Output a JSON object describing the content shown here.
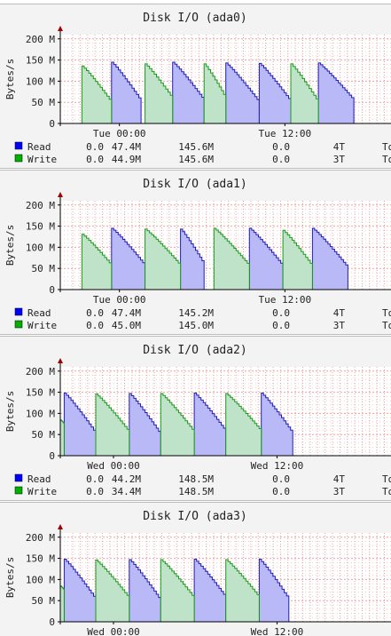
{
  "colors": {
    "read_fill": "#b9b9f7",
    "read_line": "#1e1eb4",
    "write_fill": "#bfe3c8",
    "write_line": "#1a991a",
    "grid": "#f0a0a0",
    "read_swatch": "#0000ff",
    "write_swatch": "#00b000"
  },
  "chart_data": [
    {
      "type": "area",
      "title": "Disk I/O (ada0)",
      "ylabel": "Bytes/s",
      "ylim": [
        0,
        210
      ],
      "yticks": [
        0,
        50,
        100,
        150,
        200
      ],
      "ytick_labels": [
        "0",
        "50 M",
        "100 M",
        "150 M",
        "200 M"
      ],
      "xlim": [
        0,
        180
      ],
      "xticks": [
        {
          "x": 30,
          "label": "Tue 00:00"
        },
        {
          "x": 114,
          "label": "Tue 12:00"
        }
      ],
      "series": [
        {
          "name": "Read",
          "segments": [
            [
              26,
              41,
              145,
              53
            ],
            [
              57,
              73,
              145,
              55
            ],
            [
              84,
              101,
              143,
              50
            ],
            [
              101,
              117,
              142,
              52
            ],
            [
              131,
              149,
              143,
              55
            ]
          ]
        },
        {
          "name": "Write",
          "segments": [
            [
              11,
              26,
              136,
              50
            ],
            [
              43,
              57,
              141,
              59
            ],
            [
              73,
              84,
              141,
              60
            ],
            [
              117,
              131,
              141,
              50
            ]
          ]
        }
      ],
      "legend": [
        {
          "name": "Read",
          "cur": "0.0",
          "min": "47.4M",
          "avg": "145.6M",
          "max": "0.0",
          "last": "4T",
          "tot": "To"
        },
        {
          "name": "Write",
          "cur": "0.0",
          "min": "44.9M",
          "avg": "145.6M",
          "max": "0.0",
          "last": "3T",
          "tot": "To"
        }
      ]
    },
    {
      "type": "area",
      "title": "Disk I/O (ada1)",
      "ylabel": "Bytes/s",
      "ylim": [
        0,
        210
      ],
      "yticks": [
        0,
        50,
        100,
        150,
        200
      ],
      "ytick_labels": [
        "0",
        "50 M",
        "100 M",
        "150 M",
        "200 M"
      ],
      "xlim": [
        0,
        180
      ],
      "xticks": [
        {
          "x": 30,
          "label": "Tue 00:00"
        },
        {
          "x": 114,
          "label": "Tue 12:00"
        }
      ],
      "series": [
        {
          "name": "Read",
          "segments": [
            [
              26,
              43,
              145,
              57
            ],
            [
              61,
              73,
              143,
              60
            ],
            [
              96,
              113,
              145,
              56
            ],
            [
              128,
              146,
              145,
              52
            ]
          ]
        },
        {
          "name": "Write",
          "segments": [
            [
              11,
              26,
              131,
              57
            ],
            [
              43,
              61,
              143,
              57
            ],
            [
              78,
              96,
              145,
              56
            ],
            [
              113,
              128,
              140,
              55
            ]
          ]
        }
      ],
      "legend": [
        {
          "name": "Read",
          "cur": "0.0",
          "min": "47.4M",
          "avg": "145.2M",
          "max": "0.0",
          "last": "4T",
          "tot": "To"
        },
        {
          "name": "Write",
          "cur": "0.0",
          "min": "45.0M",
          "avg": "145.0M",
          "max": "0.0",
          "last": "3T",
          "tot": "To"
        }
      ]
    },
    {
      "type": "area",
      "title": "Disk I/O (ada2)",
      "ylabel": "Bytes/s",
      "ylim": [
        0,
        210
      ],
      "yticks": [
        0,
        50,
        100,
        150,
        200
      ],
      "ytick_labels": [
        "0",
        "50 M",
        "100 M",
        "150 M",
        "200 M"
      ],
      "xlim": [
        0,
        180
      ],
      "xticks": [
        {
          "x": 27,
          "label": "Wed 00:00"
        },
        {
          "x": 110,
          "label": "Wed 12:00"
        }
      ],
      "series": [
        {
          "name": "Read",
          "segments": [
            [
              2,
              18,
              148,
              53
            ],
            [
              35,
              51,
              147,
              50
            ],
            [
              68,
              84,
              148,
              58
            ],
            [
              102,
              118,
              148,
              53
            ]
          ]
        },
        {
          "name": "Write",
          "segments": [
            [
              0,
              2,
              85,
              75
            ],
            [
              18,
              35,
              146,
              56
            ],
            [
              51,
              68,
              147,
              56
            ],
            [
              84,
              102,
              147,
              58
            ]
          ]
        }
      ],
      "legend": [
        {
          "name": "Read",
          "cur": "0.0",
          "min": "44.2M",
          "avg": "148.5M",
          "max": "0.0",
          "last": "4T",
          "tot": "To"
        },
        {
          "name": "Write",
          "cur": "0.0",
          "min": "34.4M",
          "avg": "148.5M",
          "max": "0.0",
          "last": "3T",
          "tot": "To"
        }
      ]
    },
    {
      "type": "area",
      "title": "Disk I/O (ada3)",
      "ylabel": "Bytes/s",
      "ylim": [
        0,
        210
      ],
      "yticks": [
        0,
        50,
        100,
        150,
        200
      ],
      "ytick_labels": [
        "0",
        "50 M",
        "100 M",
        "150 M",
        "200 M"
      ],
      "xlim": [
        0,
        180
      ],
      "xticks": [
        {
          "x": 27,
          "label": "Wed 00:00"
        },
        {
          "x": 110,
          "label": "Wed 12:00"
        }
      ],
      "series": [
        {
          "name": "Read",
          "segments": [
            [
              2,
              18,
              148,
              53
            ],
            [
              35,
              51,
              147,
              50
            ],
            [
              68,
              84,
              148,
              58
            ],
            [
              101,
              116,
              148,
              53
            ]
          ]
        },
        {
          "name": "Write",
          "segments": [
            [
              0,
              2,
              85,
              75
            ],
            [
              18,
              35,
              146,
              56
            ],
            [
              51,
              68,
              147,
              56
            ],
            [
              84,
              101,
              147,
              58
            ]
          ]
        }
      ],
      "legend": []
    }
  ]
}
